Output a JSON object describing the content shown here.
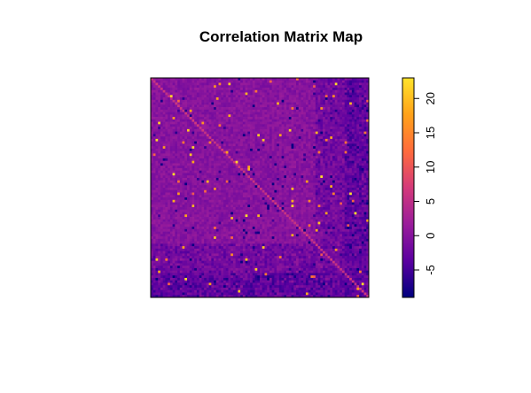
{
  "chart_data": {
    "type": "heatmap",
    "title": "Correlation Matrix Map",
    "xlabel": "",
    "ylabel": "",
    "matrix_size": 90,
    "value_range": [
      -9,
      23
    ],
    "colorbar": {
      "placement": "right",
      "ticks": [
        -5,
        0,
        5,
        10,
        15,
        20
      ],
      "tick_labels": [
        "-5",
        "0",
        "5",
        "10",
        "15",
        "20"
      ],
      "colors": [
        "#00007f",
        "#5b00a0",
        "#9a1d9b",
        "#d43a7a",
        "#ff6b3c",
        "#ffa21a",
        "#ffe32b"
      ]
    },
    "background_value": 0,
    "diagonal_value": 5,
    "noise_amplitude": 1.5,
    "grid": false,
    "legend": "colorbar-right"
  }
}
